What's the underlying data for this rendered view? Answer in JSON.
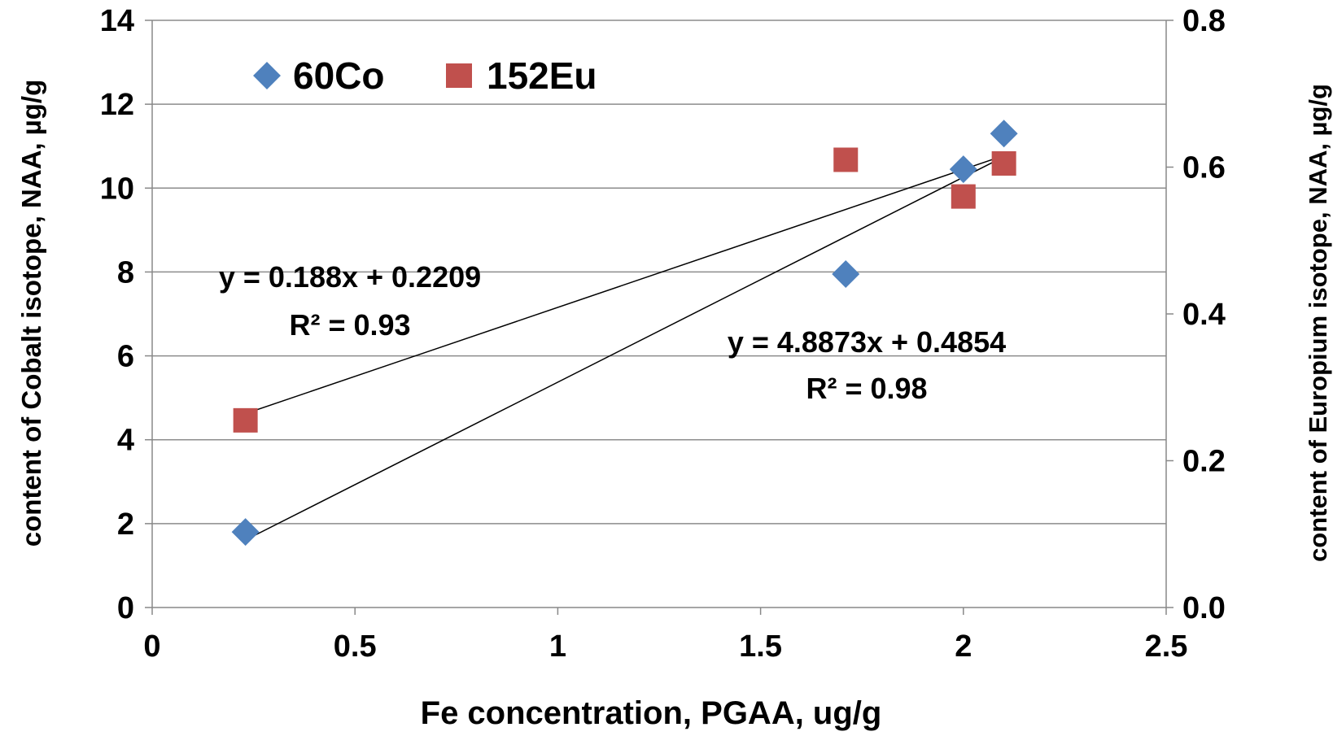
{
  "chart_data": {
    "type": "scatter",
    "title": "",
    "xlabel": "Fe concentration, PGAA, ug/g",
    "ylabel": "content of Cobalt isotope,  NAA, µg/g",
    "y2label": "content of Europium  isotope, NAA, µg/g",
    "xlim": [
      0,
      2.5
    ],
    "ylim": [
      0,
      14
    ],
    "y2lim": [
      0,
      0.8
    ],
    "xticks": [
      "0",
      "0.5",
      "1",
      "1.5",
      "2",
      "2.5"
    ],
    "yticks": [
      "0",
      "2",
      "4",
      "6",
      "8",
      "10",
      "12",
      "14"
    ],
    "y2ticks": [
      "0.0",
      "0.2",
      "0.4",
      "0.6",
      "0.8"
    ],
    "grid": "horizontal",
    "legend_position": "top-left",
    "series": [
      {
        "name": "60Co",
        "axis": "left",
        "marker": "diamond",
        "color": "#4f81bd",
        "x": [
          0.23,
          1.71,
          2.0,
          2.1
        ],
        "y": [
          1.8,
          7.95,
          10.45,
          11.3
        ]
      },
      {
        "name": "152Eu",
        "axis": "right",
        "marker": "square",
        "color": "#c0504d",
        "x": [
          0.23,
          1.71,
          2.0,
          2.1
        ],
        "y": [
          0.255,
          0.61,
          0.56,
          0.605
        ]
      }
    ],
    "trendlines": [
      {
        "series": "60Co",
        "axis": "left",
        "slope": 4.8873,
        "intercept": 0.4854,
        "x_range": [
          0.23,
          2.1
        ],
        "equation": "y = 4.8873x + 0.4854",
        "r2": "R² = 0.98"
      },
      {
        "series": "152Eu",
        "axis": "right",
        "slope": 0.188,
        "intercept": 0.2209,
        "x_range": [
          0.23,
          2.1
        ],
        "equation": "y = 0.188x + 0.2209",
        "r2": "R² = 0.93"
      }
    ]
  }
}
